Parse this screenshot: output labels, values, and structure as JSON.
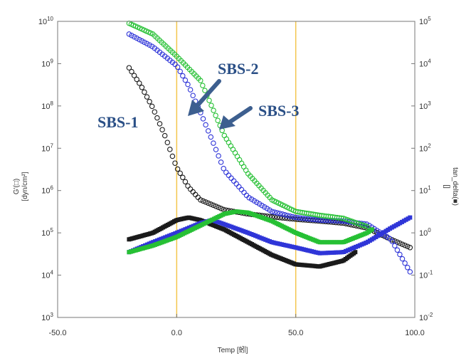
{
  "chart_data": {
    "type": "scatter",
    "xlabel": "Temp [蚓]",
    "ylabel_left": [
      "G'(□)",
      "[dyn/cm²]"
    ],
    "ylabel_right": [
      "tan_delta(■)",
      "[]"
    ],
    "xlim": [
      -50,
      100
    ],
    "ylim_left": [
      1000,
      10000000000
    ],
    "ylim_right": [
      0.01,
      100000
    ],
    "y_scale": "log",
    "grid": false,
    "x_tick_labels": [
      "-50.0",
      "0.0",
      "50.0",
      "100.0"
    ],
    "x_ticks": [
      -50,
      0,
      50,
      100
    ],
    "left_ticks": [
      3,
      4,
      5,
      6,
      7,
      8,
      9,
      10
    ],
    "right_ticks": [
      -2,
      -1,
      0,
      1,
      2,
      3,
      4,
      5
    ],
    "reference_lines_x": [
      0,
      50
    ],
    "reference_line_color": "#f3c64e",
    "callouts": [
      "SBS-1",
      "SBS-2",
      "SBS-3"
    ],
    "series": [
      {
        "name": "SBS-1",
        "color": "#1a1a1a",
        "storage_modulus": {
          "x": [
            -20,
            -15,
            -10,
            -5,
            0,
            5,
            10,
            20,
            30,
            40,
            50,
            60,
            70,
            80,
            90,
            98
          ],
          "y": [
            800000000,
            300000000,
            90000000,
            20000000,
            3500000,
            1200000,
            600000,
            350000,
            280000,
            240000,
            210000,
            190000,
            170000,
            130000,
            70000,
            45000
          ]
        },
        "tan_delta": {
          "x": [
            -20,
            -10,
            0,
            5,
            10,
            20,
            30,
            40,
            50,
            60,
            70,
            75
          ],
          "y": [
            0.7,
            1.0,
            2.0,
            2.3,
            2.0,
            1.2,
            0.6,
            0.3,
            0.18,
            0.16,
            0.22,
            0.35
          ]
        }
      },
      {
        "name": "SBS-2",
        "color": "#2f35d8",
        "storage_modulus": {
          "x": [
            -20,
            -10,
            0,
            5,
            10,
            15,
            20,
            30,
            40,
            50,
            60,
            70,
            80,
            90,
            98
          ],
          "y": [
            5000000000,
            2500000000,
            900000000,
            300000000,
            70000000,
            15000000,
            3000000,
            700000,
            320000,
            230000,
            200000,
            190000,
            160000,
            70000,
            12000
          ]
        },
        "tan_delta": {
          "x": [
            -20,
            -10,
            0,
            10,
            15,
            20,
            30,
            40,
            50,
            60,
            70,
            80,
            90,
            98
          ],
          "y": [
            0.35,
            0.6,
            1.0,
            1.7,
            2.0,
            1.6,
            1.0,
            0.6,
            0.45,
            0.33,
            0.35,
            0.6,
            1.3,
            2.3
          ]
        }
      },
      {
        "name": "SBS-3",
        "color": "#26c034",
        "storage_modulus": {
          "x": [
            -20,
            -10,
            0,
            10,
            15,
            20,
            30,
            40,
            50,
            60,
            70,
            80
          ],
          "y": [
            9000000000,
            5000000000,
            1500000000,
            400000000,
            90000000,
            20000000,
            2500000,
            600000,
            320000,
            260000,
            220000,
            140000
          ]
        },
        "tan_delta": {
          "x": [
            -20,
            -10,
            0,
            10,
            20,
            25,
            30,
            40,
            50,
            60,
            70,
            80,
            82
          ],
          "y": [
            0.35,
            0.5,
            0.8,
            1.5,
            2.8,
            3.2,
            3.0,
            1.9,
            1.0,
            0.6,
            0.6,
            1.0,
            1.2
          ]
        }
      }
    ]
  }
}
